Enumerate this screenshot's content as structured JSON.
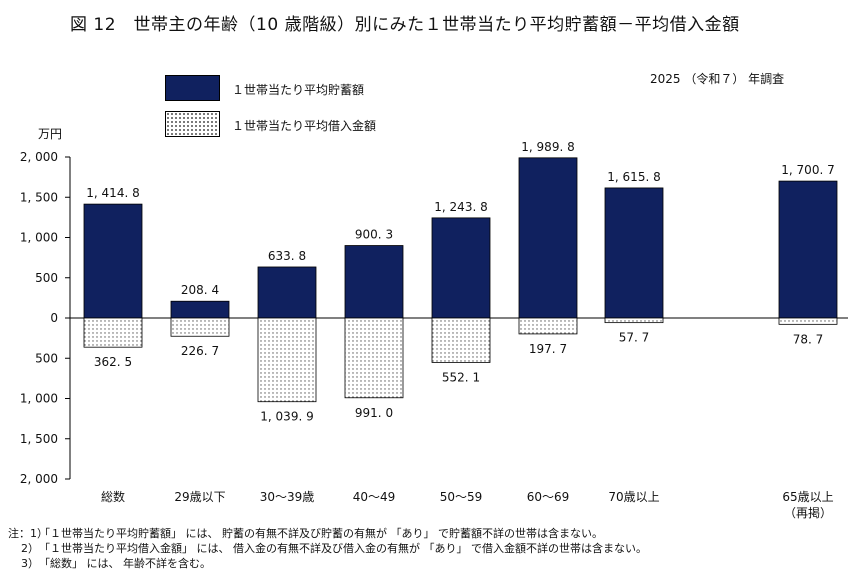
{
  "title": "図 12　世帯主の年齢（10 歳階級）別にみた１世帯当たり平均貯蓄額－平均借入金額",
  "survey_label": "2025 （令和７） 年調査",
  "unit_label": "万円",
  "legend": {
    "savings": "１世帯当たり平均貯蓄額",
    "debt": "１世帯当たり平均借入金額"
  },
  "colors": {
    "savings": "#10215f",
    "debt_dots": "#555555",
    "axis": "#000000"
  },
  "chart_data": {
    "type": "bar",
    "title": "図 12　世帯主の年齢（10 歳階級）別にみた１世帯当たり平均貯蓄額－平均借入金額",
    "categories": [
      "総数",
      "29歳以下",
      "30～39歳",
      "40～49",
      "50～59",
      "60～69",
      "70歳以上",
      "65歳以上"
    ],
    "category_sublabels": [
      "",
      "",
      "",
      "",
      "",
      "",
      "",
      "（再掲）"
    ],
    "series": [
      {
        "name": "１世帯当たり平均貯蓄額",
        "values": [
          1414.8,
          208.4,
          633.8,
          900.3,
          1243.8,
          1989.8,
          1615.8,
          1700.7
        ],
        "labels": [
          "1, 414. 8",
          "208. 4",
          "633. 8",
          "900. 3",
          "1, 243. 8",
          "1, 989. 8",
          "1, 615. 8",
          "1, 700. 7"
        ]
      },
      {
        "name": "１世帯当たり平均借入金額",
        "values": [
          362.5,
          226.7,
          1039.9,
          991.0,
          552.1,
          197.7,
          57.7,
          78.7
        ],
        "labels": [
          "362. 5",
          "226. 7",
          "1, 039. 9",
          "991. 0",
          "552. 1",
          "197. 7",
          "57. 7",
          "78. 7"
        ]
      }
    ],
    "xlabel": "",
    "ylabel": "万円",
    "ylim": [
      -2000,
      2000
    ],
    "yticks": [
      2000,
      1500,
      1000,
      500,
      0,
      -500,
      -1000,
      -1500,
      -2000
    ],
    "ytick_labels": [
      "2, 000",
      "1, 500",
      "1, 000",
      "500",
      "0",
      "500",
      "1, 000",
      "1, 500",
      "2, 000"
    ],
    "grid": false,
    "legend_position": "top-left"
  },
  "notes": [
    {
      "prefix": "注：1）",
      "text": "「１世帯当たり平均貯蓄額」 には、 貯蓄の有無不詳及び貯蓄の有無が 「あり」 で貯蓄額不詳の世帯は含まない。"
    },
    {
      "prefix": "2）",
      "text": "「１世帯当たり平均借入金額」 には、 借入金の有無不詳及び借入金の有無が 「あり」 で借入金額不詳の世帯は含まない。"
    },
    {
      "prefix": "3）",
      "text": "「総数」 には、 年齢不詳を含む。"
    }
  ]
}
